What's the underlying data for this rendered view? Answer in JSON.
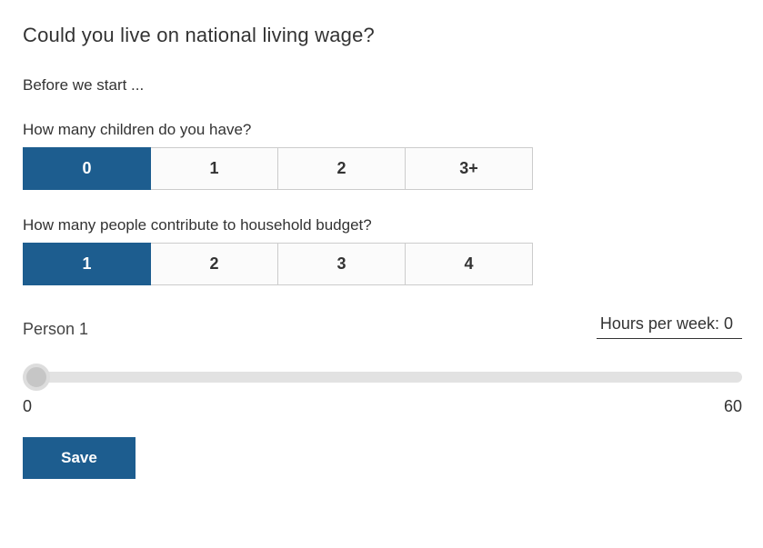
{
  "page": {
    "title": "Could you live on national living wage?",
    "subtitle": "Before we start ..."
  },
  "questions": [
    {
      "label": "How many children do you have?",
      "options": [
        "0",
        "1",
        "2",
        "3+"
      ],
      "selected_index": 0
    },
    {
      "label": "How many people contribute to household budget?",
      "options": [
        "1",
        "2",
        "3",
        "4"
      ],
      "selected_index": 0
    }
  ],
  "person": {
    "label": "Person 1",
    "hours_label": "Hours per week:",
    "hours_value": "0",
    "slider": {
      "min": "0",
      "max": "60",
      "value": 0
    }
  },
  "actions": {
    "save_label": "Save"
  },
  "colors": {
    "accent": "#1d5d8f",
    "track": "#e2e2e2",
    "thumb": "#c6c6c6"
  }
}
